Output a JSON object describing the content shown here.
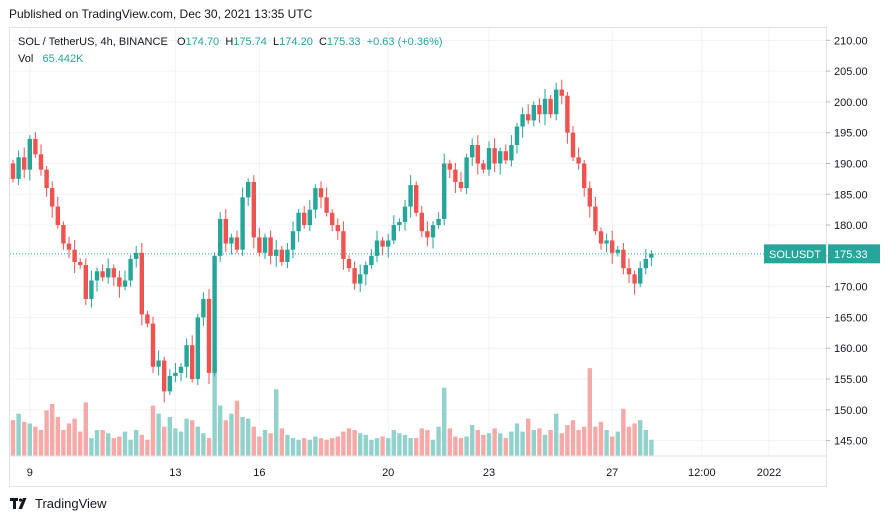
{
  "header": {
    "published": "Published on TradingView.com, Dec 30, 2021 13:35 UTC"
  },
  "legend": {
    "symbol": "SOL / TetherUS, 4h, BINANCE",
    "o_label": "O",
    "o_value": "174.70",
    "h_label": "H",
    "h_value": "175.74",
    "l_label": "L",
    "l_value": "174.20",
    "c_label": "C",
    "c_value": "175.33",
    "change": "+0.63 (+0.36%)",
    "vol_label": "Vol",
    "vol_value": "65.442K"
  },
  "price_tag": {
    "symbol": "SOLUSDT",
    "value": "175.33"
  },
  "footer": {
    "brand": "TradingView"
  },
  "colors": {
    "up": "#26a69a",
    "down": "#ef5350",
    "vol_up": "#92d2cc",
    "vol_down": "#f7a9a7",
    "tag": "#26a69a"
  },
  "chart_data": {
    "type": "candlestick",
    "y_ticks": [
      "210.00",
      "205.00",
      "200.00",
      "195.00",
      "190.00",
      "185.00",
      "180.00",
      "175.00",
      "170.00",
      "165.00",
      "160.00",
      "155.00",
      "150.00",
      "145.00"
    ],
    "y_range": [
      142.5,
      212
    ],
    "x_ticks": [
      {
        "label": "9",
        "index": 3
      },
      {
        "label": "13",
        "index": 29
      },
      {
        "label": "16",
        "index": 44
      },
      {
        "label": "20",
        "index": 67
      },
      {
        "label": "23",
        "index": 85
      },
      {
        "label": "27",
        "index": 107
      },
      {
        "label": "12:00",
        "index": 123
      },
      {
        "label": "2022",
        "index": 135
      }
    ],
    "last_price": 175.33,
    "closes": [
      187.5,
      191.0,
      189.0,
      194.0,
      191.5,
      189.0,
      186.0,
      183.0,
      180.0,
      177.0,
      176.0,
      174.0,
      173.5,
      168.0,
      171.0,
      172.5,
      171.5,
      173.0,
      171.5,
      170.0,
      171.0,
      174.5,
      175.5,
      165.5,
      164.0,
      157.0,
      158.0,
      153.0,
      155.5,
      156.0,
      157.0,
      160.5,
      155.0,
      165.0,
      168.0,
      156.0,
      175.0,
      181.0,
      177.0,
      178.0,
      176.0,
      184.5,
      187.0,
      178.0,
      175.5,
      178.0,
      175.0,
      176.0,
      174.0,
      176.0,
      179.0,
      182.0,
      180.0,
      182.5,
      186.0,
      184.5,
      182.0,
      180.0,
      179.0,
      174.5,
      173.0,
      170.5,
      172.0,
      173.5,
      175.0,
      177.5,
      176.5,
      177.5,
      180.0,
      180.5,
      183.0,
      186.5,
      182.0,
      179.0,
      178.0,
      180.0,
      181.0,
      190.0,
      189.0,
      187.0,
      186.0,
      191.0,
      193.0,
      190.0,
      189.0,
      192.5,
      190.0,
      192.0,
      190.5,
      193.0,
      196.0,
      198.0,
      197.0,
      199.5,
      198.0,
      200.5,
      198.0,
      202.0,
      201.0,
      195.0,
      191.0,
      190.0,
      186.0,
      183.0,
      179.0,
      177.0,
      177.5,
      175.5,
      176.0,
      173.0,
      172.0,
      170.5,
      173.0,
      174.5,
      175.33
    ],
    "opens": [
      190.0,
      187.5,
      191.0,
      189.0,
      194.0,
      191.5,
      189.0,
      186.0,
      183.0,
      180.0,
      177.0,
      176.0,
      174.0,
      173.5,
      168.0,
      171.0,
      172.5,
      171.5,
      173.0,
      171.5,
      170.0,
      171.0,
      174.5,
      175.5,
      165.5,
      164.0,
      157.0,
      158.0,
      153.0,
      155.5,
      156.0,
      157.0,
      160.5,
      155.0,
      165.0,
      168.0,
      156.0,
      175.0,
      181.0,
      177.0,
      178.0,
      176.0,
      184.5,
      187.0,
      178.0,
      175.5,
      178.0,
      175.0,
      176.0,
      174.0,
      176.0,
      179.0,
      182.0,
      180.0,
      182.5,
      186.0,
      184.5,
      182.0,
      180.0,
      179.0,
      174.5,
      173.0,
      170.5,
      172.0,
      173.5,
      175.0,
      177.5,
      176.5,
      177.5,
      180.0,
      180.5,
      183.0,
      186.5,
      182.0,
      179.0,
      178.0,
      180.0,
      181.0,
      190.0,
      189.0,
      187.0,
      186.0,
      191.0,
      193.0,
      190.0,
      189.0,
      192.5,
      190.0,
      192.0,
      190.5,
      193.0,
      196.0,
      198.0,
      197.0,
      199.5,
      198.0,
      200.5,
      198.0,
      202.0,
      201.0,
      195.0,
      191.0,
      190.0,
      186.0,
      183.0,
      179.0,
      177.0,
      177.5,
      175.5,
      176.0,
      173.0,
      172.0,
      170.5,
      173.0,
      174.7
    ],
    "volumes": [
      2.2,
      2.6,
      2.1,
      2.0,
      1.8,
      1.6,
      2.8,
      3.2,
      2.4,
      1.6,
      2.0,
      2.3,
      1.5,
      3.3,
      1.1,
      1.6,
      1.6,
      1.4,
      1.1,
      1.2,
      1.5,
      1.0,
      1.6,
      1.3,
      1.0,
      3.1,
      2.6,
      1.8,
      2.4,
      1.7,
      1.5,
      2.3,
      2.2,
      1.8,
      1.4,
      1.1,
      5.9,
      3.1,
      2.2,
      2.6,
      3.4,
      2.4,
      2.3,
      1.8,
      1.2,
      1.6,
      1.4,
      4.1,
      1.7,
      1.3,
      1.1,
      1.0,
      1.1,
      1.0,
      1.2,
      1.1,
      1.0,
      1.1,
      1.2,
      1.5,
      1.7,
      1.6,
      1.4,
      1.3,
      1.0,
      1.1,
      1.2,
      1.1,
      1.6,
      1.4,
      1.3,
      1.1,
      1.1,
      1.7,
      1.6,
      1.0,
      1.8,
      4.2,
      1.7,
      1.2,
      1.1,
      1.2,
      1.9,
      1.6,
      1.3,
      1.4,
      1.7,
      1.4,
      1.1,
      1.5,
      2.0,
      1.5,
      2.3,
      1.6,
      1.7,
      1.3,
      1.6,
      2.6,
      1.4,
      1.9,
      2.2,
      1.6,
      1.8,
      5.4,
      1.8,
      2.1,
      1.6,
      1.2,
      1.5,
      2.9,
      1.8,
      2.0,
      2.2,
      1.6,
      1.0
    ]
  }
}
